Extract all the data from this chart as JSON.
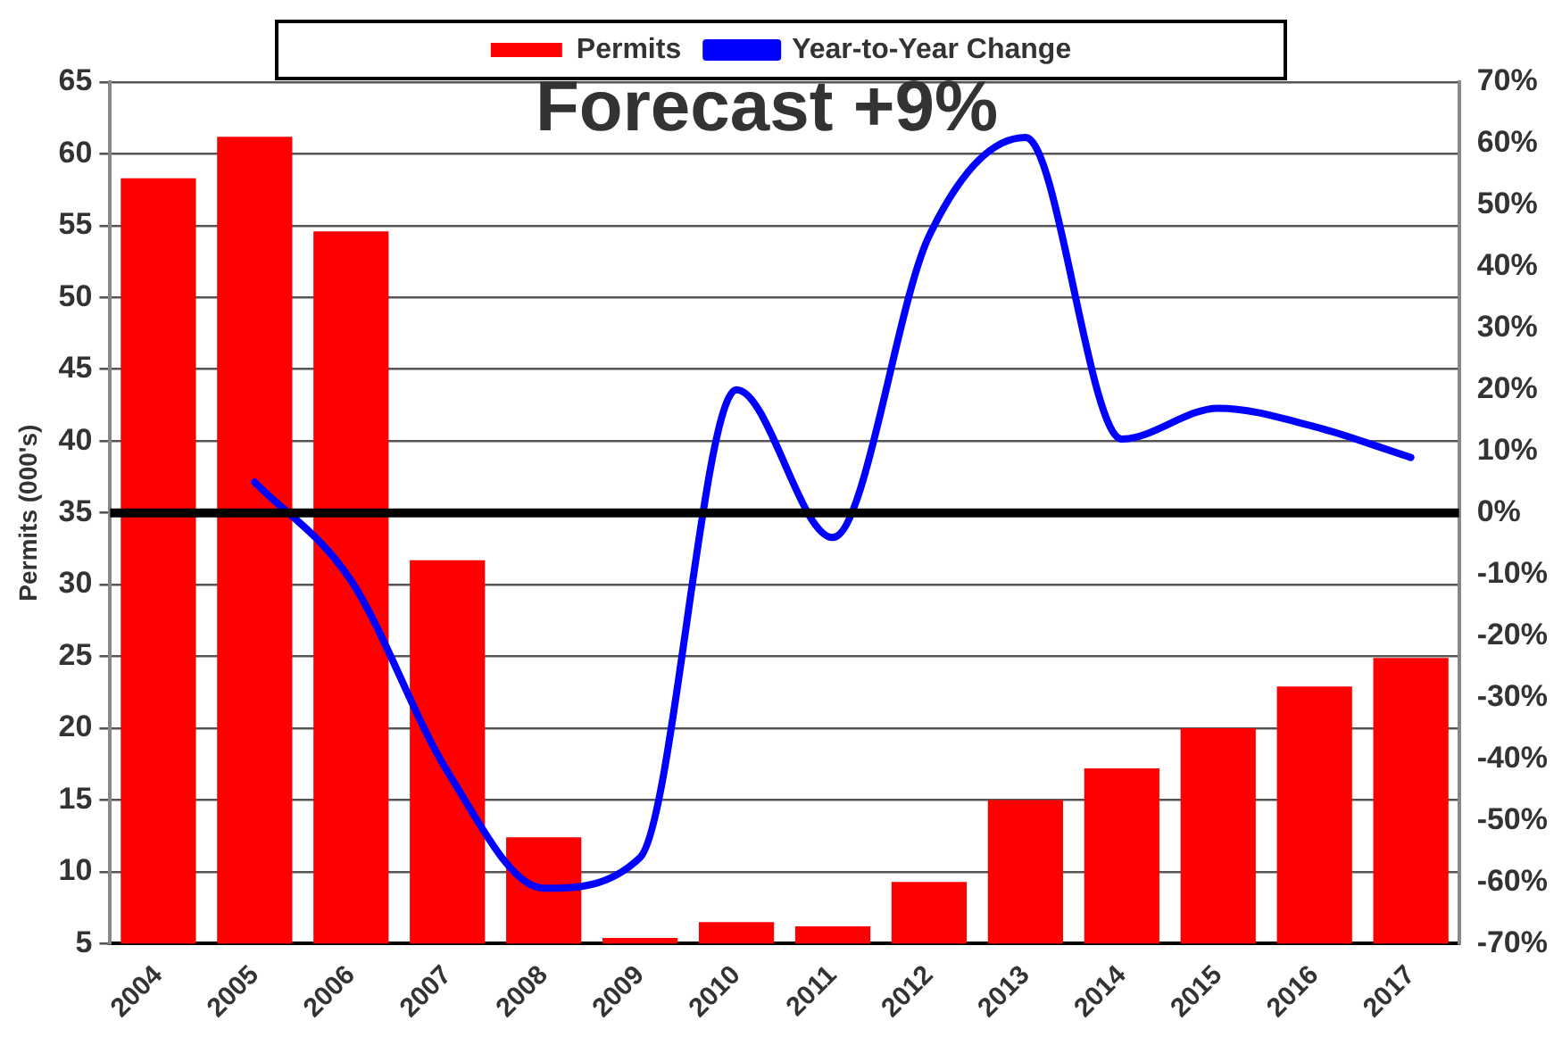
{
  "chart_data": {
    "type": "bar",
    "ylabel": "Permits (000's)",
    "categories": [
      "2004",
      "2005",
      "2006",
      "2007",
      "2008",
      "2009",
      "2010",
      "2011",
      "2012",
      "2013",
      "2014",
      "2015",
      "2016",
      "2017"
    ],
    "series": [
      {
        "name": "Permits",
        "color": "#ff0000",
        "values": [
          58.3,
          61.2,
          54.6,
          31.7,
          12.4,
          5.4,
          6.5,
          6.2,
          9.3,
          15.0,
          17.2,
          20.0,
          22.9,
          24.9
        ]
      },
      {
        "name": "Year-to-Year Change",
        "type": "line",
        "axis": "y2",
        "color": "#0000ff",
        "values": [
          null,
          5,
          -11,
          -42,
          -61,
          -56,
          20,
          -4,
          45,
          61,
          12,
          17,
          14,
          9
        ]
      }
    ],
    "ylim": [
      5,
      65
    ],
    "yticks": [
      5,
      10,
      15,
      20,
      25,
      30,
      35,
      40,
      45,
      50,
      55,
      60,
      65
    ],
    "y2lim": [
      -70,
      70
    ],
    "y2ticks": [
      {
        "value": -70,
        "label": "-70%"
      },
      {
        "value": -60,
        "label": "-60%"
      },
      {
        "value": -50,
        "label": "-50%"
      },
      {
        "value": -40,
        "label": "-40%"
      },
      {
        "value": -30,
        "label": "-30%"
      },
      {
        "value": -20,
        "label": "-20%"
      },
      {
        "value": -10,
        "label": "-10%"
      },
      {
        "value": 0,
        "label": "0%"
      },
      {
        "value": 10,
        "label": "10%"
      },
      {
        "value": 20,
        "label": "20%"
      },
      {
        "value": 30,
        "label": "30%"
      },
      {
        "value": 40,
        "label": "40%"
      },
      {
        "value": 50,
        "label": "50%"
      },
      {
        "value": 60,
        "label": "60%"
      },
      {
        "value": 70,
        "label": "70%"
      }
    ],
    "ref_lines": [
      {
        "axis": "y2",
        "value": 0,
        "color": "#000000"
      }
    ],
    "annotations": [
      "Forecast +9%"
    ],
    "grid": "y",
    "legend": "top",
    "marker": "none"
  }
}
